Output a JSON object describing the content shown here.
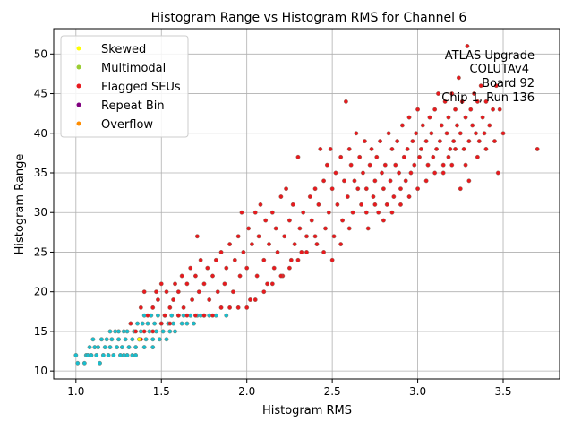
{
  "chart_data": {
    "type": "scatter",
    "title": "Histogram Range vs Histogram RMS for Channel 6",
    "xlabel": "Histogram RMS",
    "ylabel": "Histogram Range",
    "xlim": [
      0.87,
      3.83
    ],
    "ylim": [
      9.0,
      53.2
    ],
    "x_ticks": [
      "1.0",
      "1.5",
      "2.0",
      "2.5",
      "3.0",
      "3.5"
    ],
    "x_tick_values": [
      1.0,
      1.5,
      2.0,
      2.5,
      3.0,
      3.5
    ],
    "y_ticks": [
      "10",
      "15",
      "20",
      "25",
      "30",
      "35",
      "40",
      "45",
      "50"
    ],
    "y_tick_values": [
      10,
      15,
      20,
      25,
      30,
      35,
      40,
      45,
      50
    ],
    "grid": true,
    "legend_position": "top-left",
    "legend": [
      {
        "name": "Skewed",
        "color": "#ffff00"
      },
      {
        "name": "Multimodal",
        "color": "#9acd32"
      },
      {
        "name": "Flagged SEUs",
        "color": "#e8191e"
      },
      {
        "name": "Repeat Bin",
        "color": "#800080"
      },
      {
        "name": "Overflow",
        "color": "#ff8c00"
      }
    ],
    "annotation": [
      "ATLAS Upgrade",
      "COLUTAv4",
      "Board 92",
      "Chip 1, Run 136"
    ],
    "series": [
      {
        "name": "",
        "color": "#17becf",
        "points": [
          [
            1.0,
            12
          ],
          [
            1.01,
            11
          ],
          [
            1.05,
            11
          ],
          [
            1.06,
            12
          ],
          [
            1.07,
            12
          ],
          [
            1.08,
            13
          ],
          [
            1.09,
            12
          ],
          [
            1.1,
            14
          ],
          [
            1.11,
            13
          ],
          [
            1.12,
            12
          ],
          [
            1.13,
            13
          ],
          [
            1.14,
            11
          ],
          [
            1.15,
            14
          ],
          [
            1.16,
            12
          ],
          [
            1.17,
            13
          ],
          [
            1.18,
            14
          ],
          [
            1.19,
            12
          ],
          [
            1.2,
            13
          ],
          [
            1.21,
            14
          ],
          [
            1.22,
            12
          ],
          [
            1.23,
            15
          ],
          [
            1.24,
            13
          ],
          [
            1.25,
            14
          ],
          [
            1.26,
            12
          ],
          [
            1.27,
            13
          ],
          [
            1.28,
            15
          ],
          [
            1.29,
            14
          ],
          [
            1.3,
            12
          ],
          [
            1.31,
            13
          ],
          [
            1.32,
            16
          ],
          [
            1.33,
            14
          ],
          [
            1.34,
            15
          ],
          [
            1.35,
            13
          ],
          [
            1.36,
            16
          ],
          [
            1.37,
            14
          ],
          [
            1.38,
            15
          ],
          [
            1.39,
            16
          ],
          [
            1.4,
            17
          ],
          [
            1.41,
            14
          ],
          [
            1.42,
            16
          ],
          [
            1.43,
            15
          ],
          [
            1.44,
            17
          ],
          [
            1.45,
            14
          ],
          [
            1.46,
            16
          ],
          [
            1.47,
            15
          ],
          [
            1.48,
            17
          ],
          [
            1.49,
            14
          ],
          [
            1.5,
            16
          ],
          [
            1.51,
            15
          ],
          [
            1.52,
            17
          ],
          [
            1.53,
            14
          ],
          [
            1.54,
            16
          ],
          [
            1.55,
            15
          ],
          [
            1.56,
            17
          ],
          [
            1.57,
            16
          ],
          [
            1.58,
            15
          ],
          [
            1.6,
            17
          ],
          [
            1.62,
            16
          ],
          [
            1.63,
            17
          ],
          [
            1.65,
            16
          ],
          [
            1.67,
            17
          ],
          [
            1.69,
            16
          ],
          [
            1.71,
            17
          ],
          [
            1.73,
            17
          ],
          [
            1.75,
            17
          ],
          [
            1.78,
            17
          ],
          [
            1.82,
            17
          ],
          [
            1.88,
            17
          ],
          [
            1.25,
            15
          ],
          [
            1.3,
            15
          ],
          [
            1.35,
            12
          ],
          [
            1.4,
            13
          ],
          [
            1.45,
            13
          ],
          [
            1.33,
            12
          ],
          [
            1.28,
            12
          ],
          [
            1.2,
            15
          ]
        ]
      },
      {
        "name": "",
        "color": "#e8191e",
        "points": [
          [
            1.32,
            16
          ],
          [
            1.38,
            18
          ],
          [
            1.4,
            20
          ],
          [
            1.42,
            17
          ],
          [
            1.45,
            18
          ],
          [
            1.47,
            20
          ],
          [
            1.48,
            19
          ],
          [
            1.5,
            21
          ],
          [
            1.52,
            17
          ],
          [
            1.53,
            20
          ],
          [
            1.55,
            18
          ],
          [
            1.57,
            19
          ],
          [
            1.58,
            21
          ],
          [
            1.6,
            20
          ],
          [
            1.62,
            22
          ],
          [
            1.63,
            18
          ],
          [
            1.65,
            21
          ],
          [
            1.67,
            23
          ],
          [
            1.68,
            19
          ],
          [
            1.7,
            22
          ],
          [
            1.71,
            27
          ],
          [
            1.72,
            20
          ],
          [
            1.73,
            24
          ],
          [
            1.75,
            21
          ],
          [
            1.77,
            23
          ],
          [
            1.78,
            19
          ],
          [
            1.8,
            22
          ],
          [
            1.82,
            24
          ],
          [
            1.83,
            20
          ],
          [
            1.85,
            25
          ],
          [
            1.87,
            21
          ],
          [
            1.88,
            23
          ],
          [
            1.9,
            26
          ],
          [
            1.92,
            20
          ],
          [
            1.93,
            24
          ],
          [
            1.95,
            27
          ],
          [
            1.96,
            22
          ],
          [
            1.97,
            30
          ],
          [
            1.98,
            25
          ],
          [
            2.0,
            23
          ],
          [
            2.01,
            28
          ],
          [
            2.02,
            19
          ],
          [
            2.03,
            26
          ],
          [
            2.05,
            30
          ],
          [
            2.06,
            22
          ],
          [
            2.07,
            27
          ],
          [
            2.08,
            31
          ],
          [
            2.1,
            24
          ],
          [
            2.11,
            29
          ],
          [
            2.12,
            21
          ],
          [
            2.13,
            26
          ],
          [
            2.15,
            30
          ],
          [
            2.16,
            23
          ],
          [
            2.17,
            28
          ],
          [
            2.18,
            25
          ],
          [
            2.2,
            32
          ],
          [
            2.21,
            22
          ],
          [
            2.22,
            27
          ],
          [
            2.23,
            33
          ],
          [
            2.25,
            29
          ],
          [
            2.26,
            24
          ],
          [
            2.27,
            31
          ],
          [
            2.28,
            26
          ],
          [
            2.3,
            37
          ],
          [
            2.31,
            28
          ],
          [
            2.32,
            25
          ],
          [
            2.33,
            30
          ],
          [
            2.35,
            27
          ],
          [
            2.37,
            32
          ],
          [
            2.38,
            29
          ],
          [
            2.4,
            33
          ],
          [
            2.41,
            26
          ],
          [
            2.42,
            31
          ],
          [
            2.43,
            38
          ],
          [
            2.45,
            34
          ],
          [
            2.46,
            28
          ],
          [
            2.47,
            36
          ],
          [
            2.48,
            30
          ],
          [
            2.49,
            38
          ],
          [
            2.5,
            33
          ],
          [
            2.51,
            27
          ],
          [
            2.52,
            35
          ],
          [
            2.53,
            31
          ],
          [
            2.55,
            37
          ],
          [
            2.56,
            29
          ],
          [
            2.57,
            34
          ],
          [
            2.58,
            44
          ],
          [
            2.59,
            32
          ],
          [
            2.6,
            38
          ],
          [
            2.61,
            36
          ],
          [
            2.62,
            30
          ],
          [
            2.63,
            34
          ],
          [
            2.64,
            40
          ],
          [
            2.65,
            33
          ],
          [
            2.66,
            37
          ],
          [
            2.67,
            31
          ],
          [
            2.68,
            35
          ],
          [
            2.69,
            39
          ],
          [
            2.7,
            33
          ],
          [
            2.71,
            28
          ],
          [
            2.72,
            36
          ],
          [
            2.73,
            38
          ],
          [
            2.74,
            32
          ],
          [
            2.75,
            34
          ],
          [
            2.76,
            37
          ],
          [
            2.77,
            30
          ],
          [
            2.78,
            39
          ],
          [
            2.79,
            35
          ],
          [
            2.8,
            33
          ],
          [
            2.81,
            36
          ],
          [
            2.82,
            31
          ],
          [
            2.83,
            40
          ],
          [
            2.84,
            34
          ],
          [
            2.85,
            38
          ],
          [
            2.86,
            32
          ],
          [
            2.87,
            36
          ],
          [
            2.88,
            39
          ],
          [
            2.89,
            35
          ],
          [
            2.9,
            33
          ],
          [
            2.91,
            41
          ],
          [
            2.92,
            37
          ],
          [
            2.93,
            34
          ],
          [
            2.94,
            38
          ],
          [
            2.95,
            42
          ],
          [
            2.96,
            35
          ],
          [
            2.97,
            39
          ],
          [
            2.98,
            36
          ],
          [
            2.99,
            40
          ],
          [
            3.0,
            43
          ],
          [
            3.01,
            37
          ],
          [
            3.02,
            38
          ],
          [
            3.03,
            41
          ],
          [
            3.05,
            39
          ],
          [
            3.06,
            36
          ],
          [
            3.07,
            42
          ],
          [
            3.08,
            40
          ],
          [
            3.09,
            37
          ],
          [
            3.1,
            43
          ],
          [
            3.11,
            38
          ],
          [
            3.12,
            45
          ],
          [
            3.13,
            39
          ],
          [
            3.14,
            41
          ],
          [
            3.15,
            36
          ],
          [
            3.16,
            44
          ],
          [
            3.17,
            40
          ],
          [
            3.18,
            42
          ],
          [
            3.19,
            38
          ],
          [
            3.2,
            45
          ],
          [
            3.21,
            39
          ],
          [
            3.22,
            43
          ],
          [
            3.23,
            41
          ],
          [
            3.24,
            47
          ],
          [
            3.25,
            40
          ],
          [
            3.26,
            44
          ],
          [
            3.27,
            38
          ],
          [
            3.28,
            42
          ],
          [
            3.29,
            51
          ],
          [
            3.3,
            39
          ],
          [
            3.31,
            43
          ],
          [
            3.32,
            41
          ],
          [
            3.33,
            45
          ],
          [
            3.34,
            40
          ],
          [
            3.35,
            44
          ],
          [
            3.36,
            39
          ],
          [
            3.37,
            46
          ],
          [
            3.38,
            42
          ],
          [
            3.39,
            40
          ],
          [
            3.4,
            44
          ],
          [
            3.42,
            41
          ],
          [
            3.44,
            43
          ],
          [
            3.45,
            39
          ],
          [
            3.46,
            46
          ],
          [
            3.47,
            35
          ],
          [
            3.48,
            43
          ],
          [
            3.5,
            40
          ],
          [
            3.7,
            38
          ],
          [
            2.5,
            24
          ],
          [
            2.55,
            26
          ],
          [
            2.6,
            28
          ],
          [
            2.45,
            25
          ],
          [
            2.4,
            27
          ],
          [
            2.35,
            25
          ],
          [
            2.3,
            24
          ],
          [
            2.25,
            23
          ],
          [
            2.2,
            22
          ],
          [
            2.15,
            21
          ],
          [
            2.1,
            20
          ],
          [
            2.05,
            19
          ],
          [
            2.0,
            18
          ],
          [
            1.95,
            18
          ],
          [
            1.9,
            18
          ],
          [
            1.85,
            18
          ],
          [
            1.8,
            17
          ],
          [
            1.75,
            17
          ],
          [
            1.7,
            17
          ],
          [
            1.65,
            17
          ],
          [
            1.6,
            17
          ],
          [
            1.55,
            16
          ],
          [
            1.5,
            16
          ],
          [
            1.45,
            15
          ],
          [
            1.4,
            15
          ],
          [
            1.35,
            15
          ],
          [
            1.38,
            14
          ],
          [
            2.7,
            30
          ],
          [
            2.75,
            31
          ],
          [
            2.8,
            29
          ],
          [
            2.85,
            30
          ],
          [
            2.9,
            31
          ],
          [
            2.95,
            32
          ],
          [
            3.0,
            33
          ],
          [
            3.05,
            34
          ],
          [
            3.1,
            35
          ],
          [
            3.15,
            35
          ],
          [
            3.2,
            36
          ],
          [
            3.25,
            33
          ],
          [
            3.3,
            34
          ],
          [
            3.18,
            37
          ],
          [
            3.22,
            38
          ],
          [
            3.28,
            36
          ],
          [
            3.35,
            37
          ],
          [
            3.4,
            38
          ]
        ]
      },
      {
        "name": "",
        "color": "#ffff00",
        "points": [
          [
            1.37,
            14
          ]
        ]
      }
    ]
  }
}
